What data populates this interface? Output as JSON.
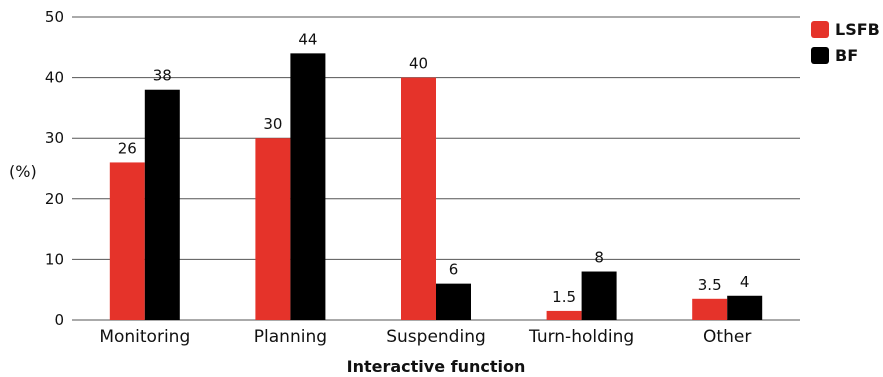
{
  "chart_data": {
    "type": "bar",
    "title": "",
    "xlabel": "Interactive function",
    "ylabel": "(%)",
    "ylim": [
      0,
      50
    ],
    "yticks": [
      0,
      10,
      20,
      30,
      40,
      50
    ],
    "categories": [
      "Monitoring",
      "Planning",
      "Suspending",
      "Turn-holding",
      "Other"
    ],
    "series": [
      {
        "name": "LSFB",
        "color": "#e5332a",
        "values": [
          26,
          30,
          40,
          1.5,
          3.5
        ],
        "labels": [
          "26",
          "30",
          "40",
          "1.5",
          "3.5"
        ]
      },
      {
        "name": "BF",
        "color": "#000000",
        "values": [
          38,
          44,
          6,
          8,
          4
        ],
        "labels": [
          "38",
          "44",
          "6",
          "8",
          "4"
        ]
      }
    ],
    "grid": true,
    "legend": "top-right"
  }
}
